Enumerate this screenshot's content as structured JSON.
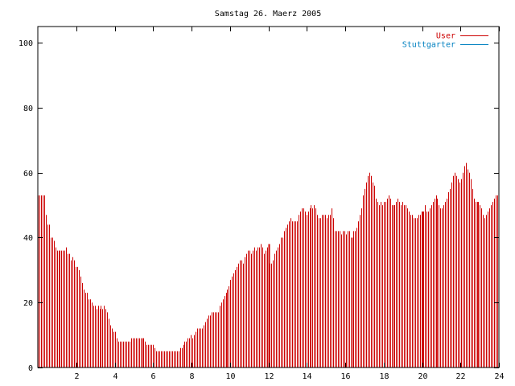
{
  "chart_data": {
    "type": "bar",
    "title": "Samstag 26. Maerz 2005",
    "xlabel": "",
    "ylabel": "",
    "xlim": [
      0,
      24
    ],
    "ylim": [
      0,
      105
    ],
    "x_ticks": [
      "2",
      "4",
      "6",
      "8",
      "10",
      "12",
      "14",
      "16",
      "18",
      "20",
      "22",
      "24"
    ],
    "y_ticks": [
      "0",
      "20",
      "40",
      "60",
      "80",
      "100"
    ],
    "grid": false,
    "legend_position": "top-right",
    "bar_step_hours": 0.0833,
    "series": [
      {
        "name": "User",
        "color": "#cc0000",
        "values": [
          53,
          53,
          53,
          53,
          53,
          47,
          44,
          44,
          40,
          40,
          39,
          37,
          36,
          36,
          36,
          36,
          36,
          36,
          37,
          35,
          35,
          33,
          34,
          33,
          31,
          31,
          30,
          28,
          26,
          24,
          23,
          23,
          21,
          21,
          20,
          19,
          19,
          18,
          19,
          18,
          19,
          18,
          19,
          18,
          17,
          15,
          13,
          12,
          11,
          11,
          9,
          8,
          8,
          8,
          8,
          8,
          8,
          8,
          8,
          9,
          9,
          9,
          9,
          9,
          9,
          9,
          9,
          9,
          8,
          7,
          7,
          7,
          7,
          7,
          6,
          5,
          5,
          5,
          5,
          5,
          5,
          5,
          5,
          5,
          5,
          5,
          5,
          5,
          5,
          5,
          6,
          6,
          7,
          8,
          8,
          9,
          9,
          10,
          9,
          10,
          11,
          12,
          12,
          12,
          12,
          13,
          14,
          15,
          16,
          16,
          17,
          17,
          17,
          17,
          17,
          19,
          20,
          21,
          22,
          23,
          24,
          25,
          27,
          28,
          29,
          30,
          31,
          32,
          33,
          33,
          32,
          34,
          35,
          36,
          36,
          35,
          36,
          37,
          36,
          37,
          37,
          38,
          37,
          35,
          36,
          37,
          38,
          32,
          32,
          33,
          35,
          36,
          37,
          38,
          40,
          40,
          42,
          43,
          44,
          45,
          46,
          45,
          45,
          45,
          45,
          47,
          48,
          49,
          49,
          48,
          47,
          48,
          49,
          50,
          49,
          50,
          49,
          47,
          46,
          46,
          47,
          47,
          47,
          46,
          47,
          47,
          49,
          46,
          42,
          42,
          42,
          42,
          41,
          42,
          42,
          41,
          42,
          42,
          40,
          40,
          42,
          42,
          43,
          45,
          47,
          49,
          53,
          55,
          57,
          59,
          60,
          59,
          57,
          56,
          52,
          51,
          50,
          51,
          50,
          51,
          51,
          52,
          53,
          52,
          50,
          50,
          50,
          51,
          52,
          51,
          50,
          51,
          50,
          50,
          49,
          48,
          47,
          47,
          46,
          46,
          46,
          47,
          47,
          48,
          48,
          50,
          48,
          48,
          49,
          50,
          51,
          52,
          53,
          52,
          50,
          49,
          49,
          50,
          51,
          52,
          54,
          55,
          57,
          59,
          60,
          59,
          58,
          57,
          58,
          60,
          62,
          63,
          61,
          60,
          58,
          55,
          52,
          51,
          51,
          51,
          50,
          49,
          47,
          46,
          47,
          48,
          49,
          50,
          51,
          52,
          53,
          53
        ]
      },
      {
        "name": "Stuttgarter",
        "color": "#0080c0",
        "values": []
      }
    ],
    "highlight_x": [
      12,
      20
    ]
  }
}
